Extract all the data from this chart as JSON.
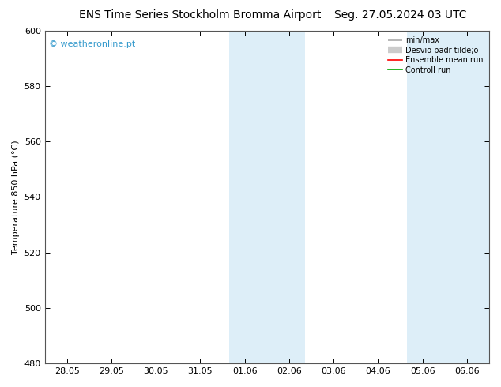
{
  "title_left": "ENS Time Series Stockholm Bromma Airport",
  "title_right": "Seg. 27.05.2024 03 UTC",
  "ylabel": "Temperature 850 hPa (°C)",
  "ylim": [
    480,
    600
  ],
  "yticks": [
    480,
    500,
    520,
    540,
    560,
    580,
    600
  ],
  "xlabel_dates": [
    "28.05",
    "29.05",
    "30.05",
    "31.05",
    "01.06",
    "02.06",
    "03.06",
    "04.06",
    "05.06",
    "06.06"
  ],
  "background_color": "#ffffff",
  "plot_bg_color": "#ffffff",
  "shade_color": "#ddeef8",
  "watermark": "© weatheronline.pt",
  "watermark_color": "#3399cc",
  "legend_labels": [
    "min/max",
    "Desvio padr tilde;o",
    "Ensemble mean run",
    "Controll run"
  ],
  "legend_colors_line": [
    "#aaaaaa",
    "#cccccc",
    "#ff0000",
    "#00aa00"
  ],
  "border_color": "#555555",
  "title_fontsize": 10,
  "axis_label_fontsize": 8,
  "tick_fontsize": 8
}
